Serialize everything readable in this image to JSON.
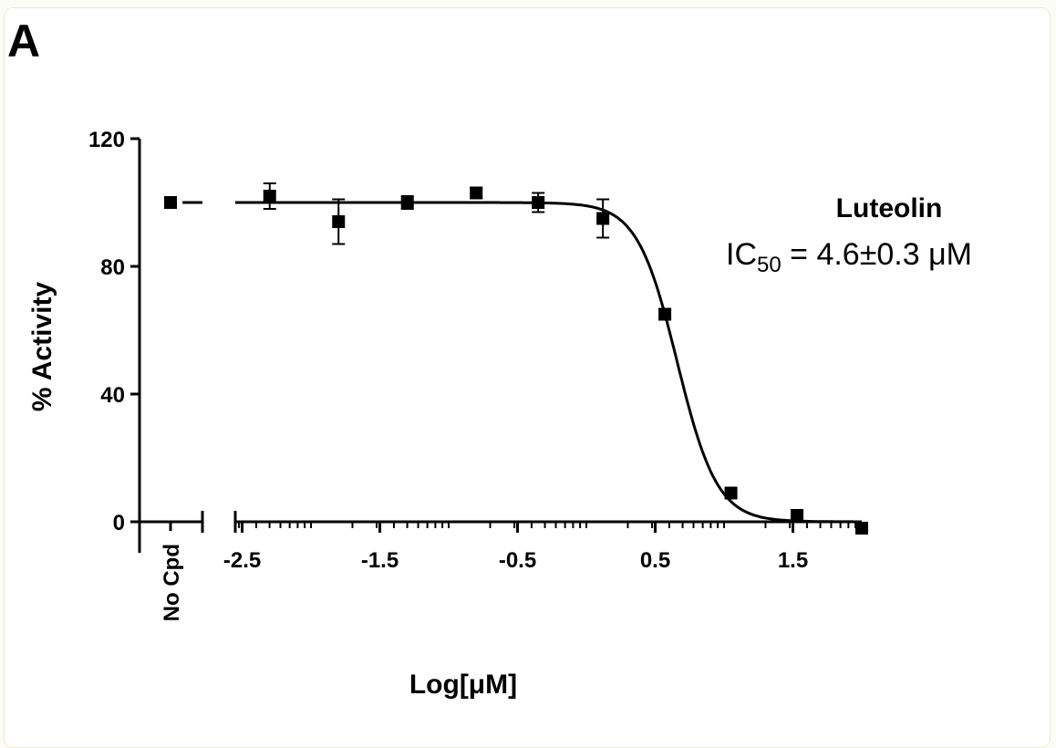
{
  "panel_label": "A",
  "chart_data": {
    "type": "scatter",
    "xlabel": "Log[μM]",
    "ylabel": "% Activity",
    "xlim": [
      -2.55,
      2.0
    ],
    "ylim": [
      0,
      120
    ],
    "x_ticks": [
      {
        "value": -2.5,
        "label": "-2.5"
      },
      {
        "value": -1.5,
        "label": "-1.5"
      },
      {
        "value": -0.5,
        "label": "-0.5"
      },
      {
        "value": 0.5,
        "label": "0.5"
      },
      {
        "value": 1.5,
        "label": "1.5"
      }
    ],
    "y_ticks": [
      {
        "value": 0,
        "label": "0"
      },
      {
        "value": 40,
        "label": "40"
      },
      {
        "value": 80,
        "label": "80"
      },
      {
        "value": 120,
        "label": "120"
      }
    ],
    "broken_axis": true,
    "control": {
      "label": "No Cpd",
      "y": 100
    },
    "series": [
      {
        "points": [
          {
            "x": -2.3,
            "y": 102,
            "err": 4
          },
          {
            "x": -1.8,
            "y": 94,
            "err": 7
          },
          {
            "x": -1.3,
            "y": 100,
            "err": 2
          },
          {
            "x": -0.8,
            "y": 103,
            "err": 1.5
          },
          {
            "x": -0.35,
            "y": 100,
            "err": 3
          },
          {
            "x": 0.12,
            "y": 95,
            "err": 6
          },
          {
            "x": 0.57,
            "y": 65,
            "err": 1.5
          },
          {
            "x": 1.05,
            "y": 9,
            "err": 1
          },
          {
            "x": 1.53,
            "y": 2,
            "err": 0.5
          },
          {
            "x": 2.0,
            "y": -2,
            "err": 0
          }
        ]
      }
    ],
    "fit": {
      "top": 100,
      "bottom": 0,
      "log_ic50": 0.66,
      "hill": 3.0
    },
    "annotation": {
      "compound": "Luteolin",
      "ic_prefix": "IC",
      "ic_subscript": "50",
      "ic_value": " = 4.6±0.3 μM"
    },
    "grid": false,
    "legend": "none"
  }
}
